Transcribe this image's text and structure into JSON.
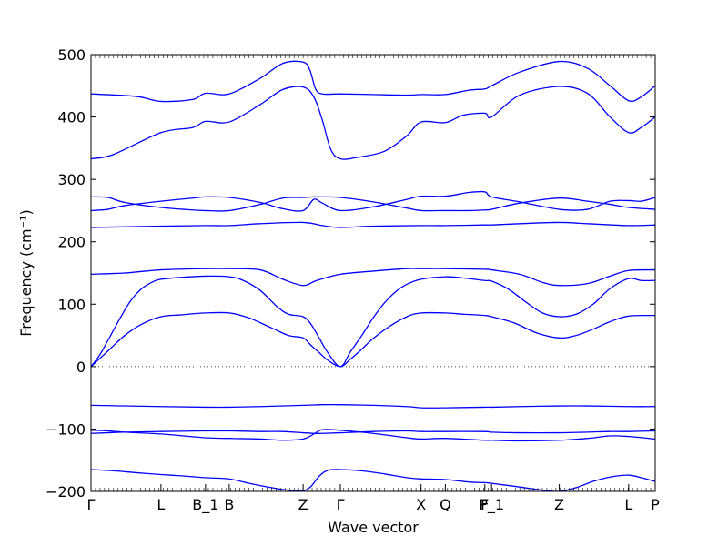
{
  "chart_data": {
    "type": "line",
    "title": "",
    "xlabel": "Wave vector",
    "ylabel": "Frequency (cm⁻¹)",
    "ylim": [
      -200,
      500
    ],
    "y_ticks": [
      -200,
      -100,
      0,
      100,
      200,
      300,
      400,
      500
    ],
    "xlim": [
      0,
      100
    ],
    "x_ticks": [
      {
        "label": "Γ",
        "x": 0
      },
      {
        "label": "L",
        "x": 12.4
      },
      {
        "label": "B_1",
        "x": 20.3
      },
      {
        "label": "B",
        "x": 24.5
      },
      {
        "label": "Z",
        "x": 37.6
      },
      {
        "label": "Γ",
        "x": 44.2
      },
      {
        "label": "X",
        "x": 58.5
      },
      {
        "label": "Q",
        "x": 62.8
      },
      {
        "label": "F",
        "x": 69.8
      },
      {
        "label": "P_1",
        "x": 71.0
      },
      {
        "label": "Z",
        "x": 83.0
      },
      {
        "label": "L",
        "x": 95.3
      },
      {
        "label": "P",
        "x": 100
      }
    ],
    "zero_line": true,
    "grid": false,
    "line_color": "#0000ff",
    "series": [
      {
        "x": [
          0,
          8,
          12.4,
          18,
          20.3,
          24.5,
          30,
          34,
          37.6,
          38.8,
          39.8,
          41,
          44.2,
          50,
          56,
          58.5,
          62.8,
          67,
          69.8,
          71,
          76,
          83,
          88,
          92,
          95.3,
          97.5,
          100
        ],
        "y": [
          437,
          433,
          425,
          428,
          438,
          437,
          462,
          486,
          488,
          475,
          445,
          437,
          437,
          436,
          435,
          436,
          436,
          443,
          445,
          450,
          472,
          489,
          478,
          450,
          426,
          432,
          450
        ]
      },
      {
        "x": [
          0,
          4,
          12.4,
          18,
          20.3,
          24.5,
          30,
          34,
          37.6,
          39.5,
          41,
          42.5,
          44.2,
          47,
          52,
          56,
          58.5,
          62.8,
          66,
          69.8,
          71,
          76,
          83,
          88,
          92,
          95.3,
          97.5,
          100
        ],
        "y": [
          333,
          340,
          375,
          383,
          393,
          392,
          420,
          444,
          448,
          432,
          395,
          348,
          333,
          335,
          345,
          370,
          392,
          391,
          403,
          406,
          400,
          435,
          449,
          438,
          400,
          375,
          383,
          400
        ]
      },
      {
        "x": [
          0,
          3,
          6,
          12.4,
          18,
          20.3,
          24.5,
          30,
          34,
          37.6,
          39.5,
          41,
          44.2,
          50,
          56,
          58.5,
          62.8,
          67,
          69.8,
          71,
          76,
          83,
          88,
          92,
          95.3,
          100
        ],
        "y": [
          272,
          271,
          263,
          255,
          251,
          250,
          250,
          260,
          270,
          271,
          272,
          272,
          271,
          264,
          254,
          250,
          250,
          250,
          251,
          252,
          262,
          270,
          265,
          260,
          255,
          252
        ]
      },
      {
        "x": [
          0,
          3,
          6,
          12.4,
          18,
          20.3,
          24.5,
          30,
          34,
          37.6,
          39.5,
          41,
          44.2,
          50,
          56,
          58.5,
          62.8,
          67,
          69.8,
          71,
          76,
          83,
          88,
          92,
          95.3,
          97.5,
          100
        ],
        "y": [
          250,
          252,
          258,
          265,
          270,
          272,
          271,
          263,
          253,
          250,
          268,
          262,
          250,
          256,
          268,
          273,
          273,
          279,
          280,
          272,
          264,
          252,
          252,
          265,
          266,
          265,
          271
        ]
      },
      {
        "x": [
          0,
          12.4,
          20.3,
          24.5,
          30,
          37.6,
          41,
          44.2,
          50,
          58.5,
          62.8,
          69.8,
          71,
          76,
          83,
          88,
          95.3,
          100
        ],
        "y": [
          223,
          225,
          226,
          226,
          229,
          231,
          226,
          223,
          225,
          226,
          226,
          227,
          227,
          229,
          231,
          229,
          226,
          227
        ]
      },
      {
        "x": [
          0,
          6,
          12.4,
          20.3,
          24.5,
          30,
          34,
          37.6,
          40,
          44.2,
          50,
          56,
          58.5,
          62.8,
          69.8,
          71,
          76,
          80,
          83,
          88,
          92,
          95.3,
          100
        ],
        "y": [
          148,
          150,
          155,
          157,
          157,
          155,
          140,
          130,
          138,
          148,
          153,
          157,
          157,
          157,
          156,
          155,
          148,
          135,
          130,
          133,
          145,
          154,
          155
        ]
      },
      {
        "x": [
          0,
          1.5,
          3,
          5,
          7,
          9,
          11,
          12.4,
          16,
          20.3,
          24.5,
          27,
          30,
          33,
          35,
          37.6,
          39,
          40.5,
          42,
          44.2,
          46,
          48,
          50,
          52,
          54,
          56,
          58.5,
          62.8,
          66,
          69.8,
          71,
          74,
          77,
          80,
          83,
          86,
          89,
          92,
          95.3,
          97.5,
          100
        ],
        "y": [
          0,
          18,
          42,
          75,
          105,
          125,
          136,
          140,
          143,
          145,
          144,
          138,
          122,
          96,
          84,
          80,
          68,
          45,
          22,
          0,
          24,
          50,
          78,
          102,
          120,
          132,
          140,
          144,
          142,
          138,
          137,
          124,
          104,
          86,
          80,
          84,
          100,
          125,
          141,
          138,
          138
        ]
      },
      {
        "x": [
          0,
          3,
          6,
          9,
          12.4,
          16,
          20.3,
          24.5,
          28,
          32,
          35,
          37.6,
          39,
          40.5,
          42,
          44.2,
          46,
          48,
          50,
          53,
          56,
          58.5,
          62.8,
          66,
          69.8,
          71,
          75,
          79,
          83,
          86,
          89,
          92,
          95.3,
          100
        ],
        "y": [
          0,
          25,
          50,
          68,
          80,
          83,
          86,
          86,
          78,
          62,
          50,
          46,
          34,
          22,
          10,
          0,
          12,
          28,
          45,
          65,
          80,
          86,
          86,
          84,
          82,
          80,
          70,
          54,
          46,
          50,
          60,
          72,
          81,
          82
        ]
      },
      {
        "x": [
          0,
          12.4,
          20.3,
          24.5,
          30,
          37.6,
          41,
          44.2,
          50,
          56,
          58.5,
          62.8,
          69.8,
          71,
          76,
          83,
          88,
          95.3,
          100
        ],
        "y": [
          -62,
          -64,
          -65,
          -65,
          -64,
          -62,
          -61,
          -61,
          -62,
          -64,
          -66,
          -66,
          -65,
          -65,
          -64,
          -63,
          -63,
          -64,
          -64
        ]
      },
      {
        "x": [
          0,
          3,
          6,
          12.4,
          20.3,
          24.5,
          30,
          34,
          37.6,
          39.5,
          41,
          44.2,
          50,
          56,
          58.5,
          62.8,
          69.8,
          71,
          76,
          83,
          88,
          92,
          95.3,
          100
        ],
        "y": [
          -102,
          -103,
          -105,
          -108,
          -114,
          -115,
          -116,
          -118,
          -116,
          -108,
          -101,
          -102,
          -107,
          -114,
          -116,
          -115,
          -118,
          -118,
          -119,
          -118,
          -115,
          -111,
          -112,
          -116
        ]
      },
      {
        "x": [
          0,
          3,
          6,
          12.4,
          20.3,
          24.5,
          30,
          34,
          37.6,
          39.5,
          41,
          44.2,
          50,
          56,
          58.5,
          62.8,
          69.8,
          71,
          76,
          83,
          88,
          92,
          95.3,
          100
        ],
        "y": [
          -107,
          -106,
          -105,
          -104,
          -103,
          -103,
          -104,
          -104,
          -106,
          -107,
          -107,
          -106,
          -104,
          -103,
          -104,
          -104,
          -104,
          -105,
          -106,
          -106,
          -105,
          -104,
          -104,
          -103
        ]
      },
      {
        "x": [
          0,
          4,
          8,
          12.4,
          16,
          20.3,
          24.5,
          28,
          32,
          35,
          37.6,
          39,
          40.5,
          42,
          44.2,
          48,
          52,
          56,
          58.5,
          62.8,
          67,
          69.8,
          71,
          76,
          80,
          83,
          86,
          89,
          92,
          95.3,
          97.5,
          100
        ],
        "y": [
          -165,
          -167,
          -170,
          -173,
          -175,
          -178,
          -180,
          -187,
          -194,
          -198,
          -199,
          -192,
          -175,
          -166,
          -165,
          -167,
          -172,
          -178,
          -180,
          -181,
          -185,
          -186,
          -187,
          -193,
          -198,
          -200,
          -194,
          -184,
          -177,
          -174,
          -178,
          -184
        ]
      }
    ]
  }
}
